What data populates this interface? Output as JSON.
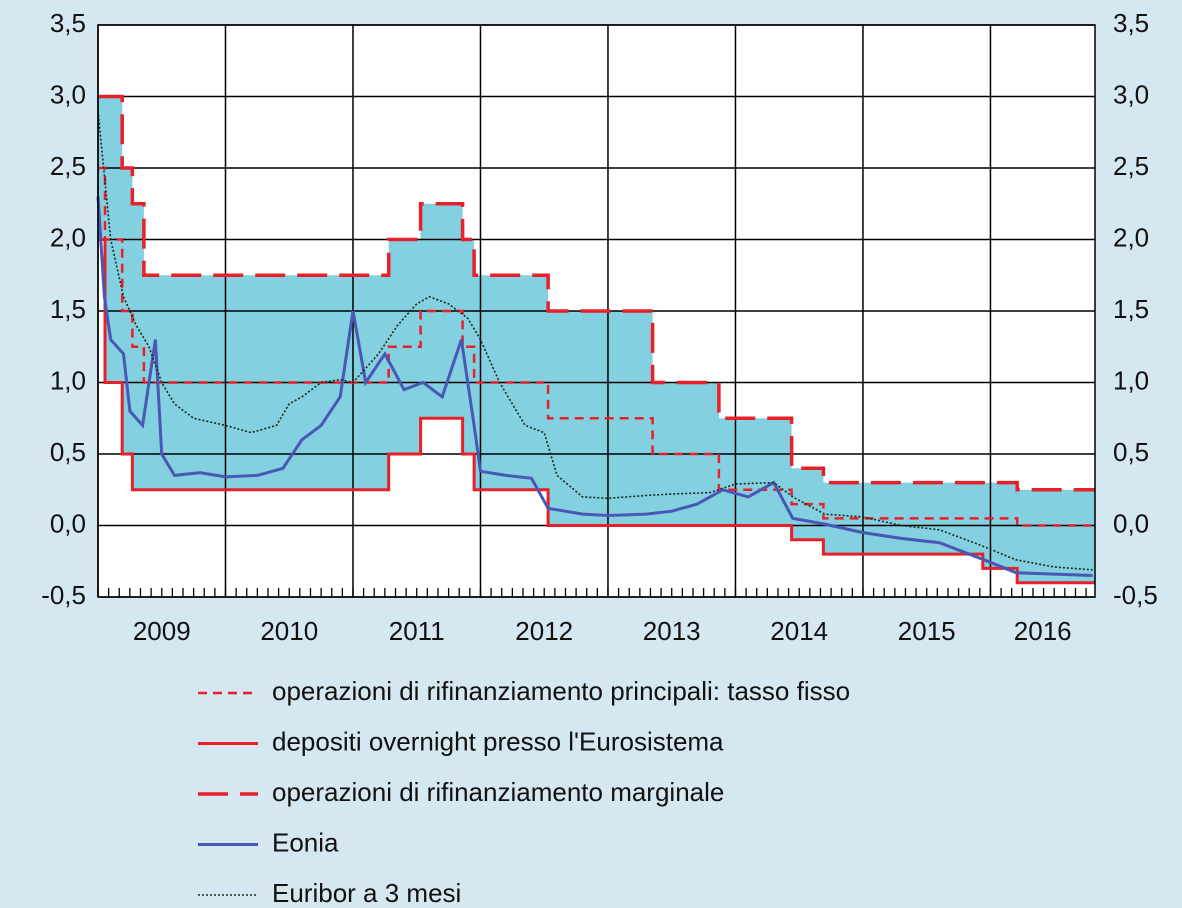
{
  "chart_data": {
    "type": "line",
    "xlim": [
      2009,
      2016.82
    ],
    "xticks": [
      {
        "value": 2009,
        "label": "2009"
      },
      {
        "value": 2010,
        "label": "2010"
      },
      {
        "value": 2011,
        "label": "2011"
      },
      {
        "value": 2012,
        "label": "2012"
      },
      {
        "value": 2013,
        "label": "2013"
      },
      {
        "value": 2014,
        "label": "2014"
      },
      {
        "value": 2015,
        "label": "2015"
      },
      {
        "value": 2016,
        "label": "2016"
      }
    ],
    "ylim": [
      -0.5,
      3.5
    ],
    "yticks": [
      {
        "value": -0.5,
        "label": "-0,5"
      },
      {
        "value": 0,
        "label": "0,0"
      },
      {
        "value": 0.5,
        "label": "0,5"
      },
      {
        "value": 1,
        "label": "1,0"
      },
      {
        "value": 1.5,
        "label": "1,5"
      },
      {
        "value": 2,
        "label": "2,0"
      },
      {
        "value": 2.5,
        "label": "2,5"
      },
      {
        "value": 3,
        "label": "3,0"
      },
      {
        "value": 3.5,
        "label": "3,5"
      }
    ],
    "y2lim": [
      -0.5,
      3.5
    ],
    "y2ticks": [
      {
        "value": -0.5,
        "label": "-0,5"
      },
      {
        "value": 0,
        "label": "0,0"
      },
      {
        "value": 0.5,
        "label": "0,5"
      },
      {
        "value": 1,
        "label": "1,0"
      },
      {
        "value": 1.5,
        "label": "1,5"
      },
      {
        "value": 2,
        "label": "2,0"
      },
      {
        "value": 2.5,
        "label": "2,5"
      },
      {
        "value": 3,
        "label": "3,0"
      },
      {
        "value": 3.5,
        "label": "3,5"
      }
    ],
    "grid": true,
    "corridor_color": "#82d0e0",
    "series": [
      {
        "name": "operazioni di rifinanziamento principali: tasso fisso",
        "color": "#e8202a",
        "linestyle": "dashed",
        "drawstyle": "steps-post",
        "x": [
          2009,
          2009.055,
          2009.19,
          2009.27,
          2009.36,
          2011.28,
          2011.53,
          2011.86,
          2011.95,
          2012.53,
          2013.35,
          2013.87,
          2014.44,
          2014.69,
          2015.94,
          2016.21,
          2016.82
        ],
        "values": [
          2.5,
          2.0,
          1.5,
          1.25,
          1.0,
          1.25,
          1.5,
          1.25,
          1.0,
          0.75,
          0.5,
          0.25,
          0.15,
          0.05,
          0.05,
          0.0,
          0.0
        ]
      },
      {
        "name": "depositi overnight presso l'Eurosistema",
        "color": "#e8202a",
        "linestyle": "solid",
        "drawstyle": "steps-post",
        "x": [
          2009,
          2009.055,
          2009.19,
          2009.27,
          2009.36,
          2011.28,
          2011.53,
          2011.86,
          2011.95,
          2012.53,
          2013.35,
          2013.87,
          2014.44,
          2014.69,
          2015.94,
          2016.21,
          2016.82
        ],
        "values": [
          2.0,
          1.0,
          0.5,
          0.25,
          0.25,
          0.5,
          0.75,
          0.5,
          0.25,
          0.0,
          0.0,
          0.0,
          -0.1,
          -0.2,
          -0.3,
          -0.4,
          -0.4
        ]
      },
      {
        "name": "operazioni di rifinanziamento marginale",
        "color": "#e8202a",
        "linestyle": "longdash",
        "drawstyle": "steps-post",
        "x": [
          2009,
          2009.055,
          2009.19,
          2009.27,
          2009.36,
          2011.28,
          2011.53,
          2011.86,
          2011.95,
          2012.53,
          2013.35,
          2013.87,
          2014.44,
          2014.69,
          2015.94,
          2016.21,
          2016.82
        ],
        "values": [
          3.0,
          3.0,
          2.5,
          2.25,
          1.75,
          2.0,
          2.25,
          2.0,
          1.75,
          1.5,
          1.0,
          0.75,
          0.4,
          0.3,
          0.3,
          0.25,
          0.25
        ]
      },
      {
        "name": "Eonia",
        "color": "#4a57b5",
        "linestyle": "solid",
        "x": [
          2009,
          2009.05,
          2009.1,
          2009.2,
          2009.25,
          2009.35,
          2009.45,
          2009.5,
          2009.6,
          2009.8,
          2010.0,
          2010.25,
          2010.45,
          2010.6,
          2010.75,
          2010.9,
          2011.0,
          2011.1,
          2011.25,
          2011.4,
          2011.55,
          2011.7,
          2011.85,
          2011.95,
          2012.0,
          2012.2,
          2012.4,
          2012.53,
          2012.8,
          2013.0,
          2013.3,
          2013.5,
          2013.7,
          2013.9,
          2014.1,
          2014.3,
          2014.45,
          2014.7,
          2015.0,
          2015.3,
          2015.6,
          2015.95,
          2016.2,
          2016.5,
          2016.8
        ],
        "values": [
          2.3,
          1.6,
          1.3,
          1.2,
          0.8,
          0.7,
          1.3,
          0.5,
          0.35,
          0.37,
          0.34,
          0.35,
          0.4,
          0.6,
          0.7,
          0.9,
          1.5,
          1.0,
          1.2,
          0.95,
          1.0,
          0.9,
          1.3,
          0.7,
          0.38,
          0.35,
          0.33,
          0.12,
          0.08,
          0.07,
          0.08,
          0.1,
          0.15,
          0.25,
          0.2,
          0.3,
          0.05,
          0.01,
          -0.05,
          -0.09,
          -0.12,
          -0.24,
          -0.33,
          -0.34,
          -0.35
        ]
      },
      {
        "name": "Euribor a 3 mesi",
        "color": "#1a2a1a",
        "linestyle": "dotted",
        "x": [
          2009,
          2009.1,
          2009.2,
          2009.3,
          2009.4,
          2009.5,
          2009.6,
          2009.75,
          2010.0,
          2010.2,
          2010.4,
          2010.5,
          2010.6,
          2010.75,
          2010.9,
          2011.0,
          2011.2,
          2011.35,
          2011.5,
          2011.6,
          2011.75,
          2011.9,
          2012.0,
          2012.15,
          2012.35,
          2012.5,
          2012.6,
          2012.8,
          2013.0,
          2013.3,
          2013.5,
          2013.8,
          2014.0,
          2014.3,
          2014.45,
          2014.7,
          2015.0,
          2015.3,
          2015.6,
          2015.9,
          2016.2,
          2016.5,
          2016.8
        ],
        "values": [
          2.9,
          2.0,
          1.6,
          1.4,
          1.25,
          1.0,
          0.85,
          0.75,
          0.7,
          0.65,
          0.7,
          0.85,
          0.9,
          1.0,
          1.02,
          1.0,
          1.2,
          1.4,
          1.55,
          1.6,
          1.55,
          1.45,
          1.3,
          1.0,
          0.7,
          0.65,
          0.35,
          0.2,
          0.19,
          0.21,
          0.22,
          0.23,
          0.29,
          0.3,
          0.2,
          0.08,
          0.06,
          0.0,
          -0.03,
          -0.13,
          -0.24,
          -0.29,
          -0.31
        ]
      }
    ]
  }
}
